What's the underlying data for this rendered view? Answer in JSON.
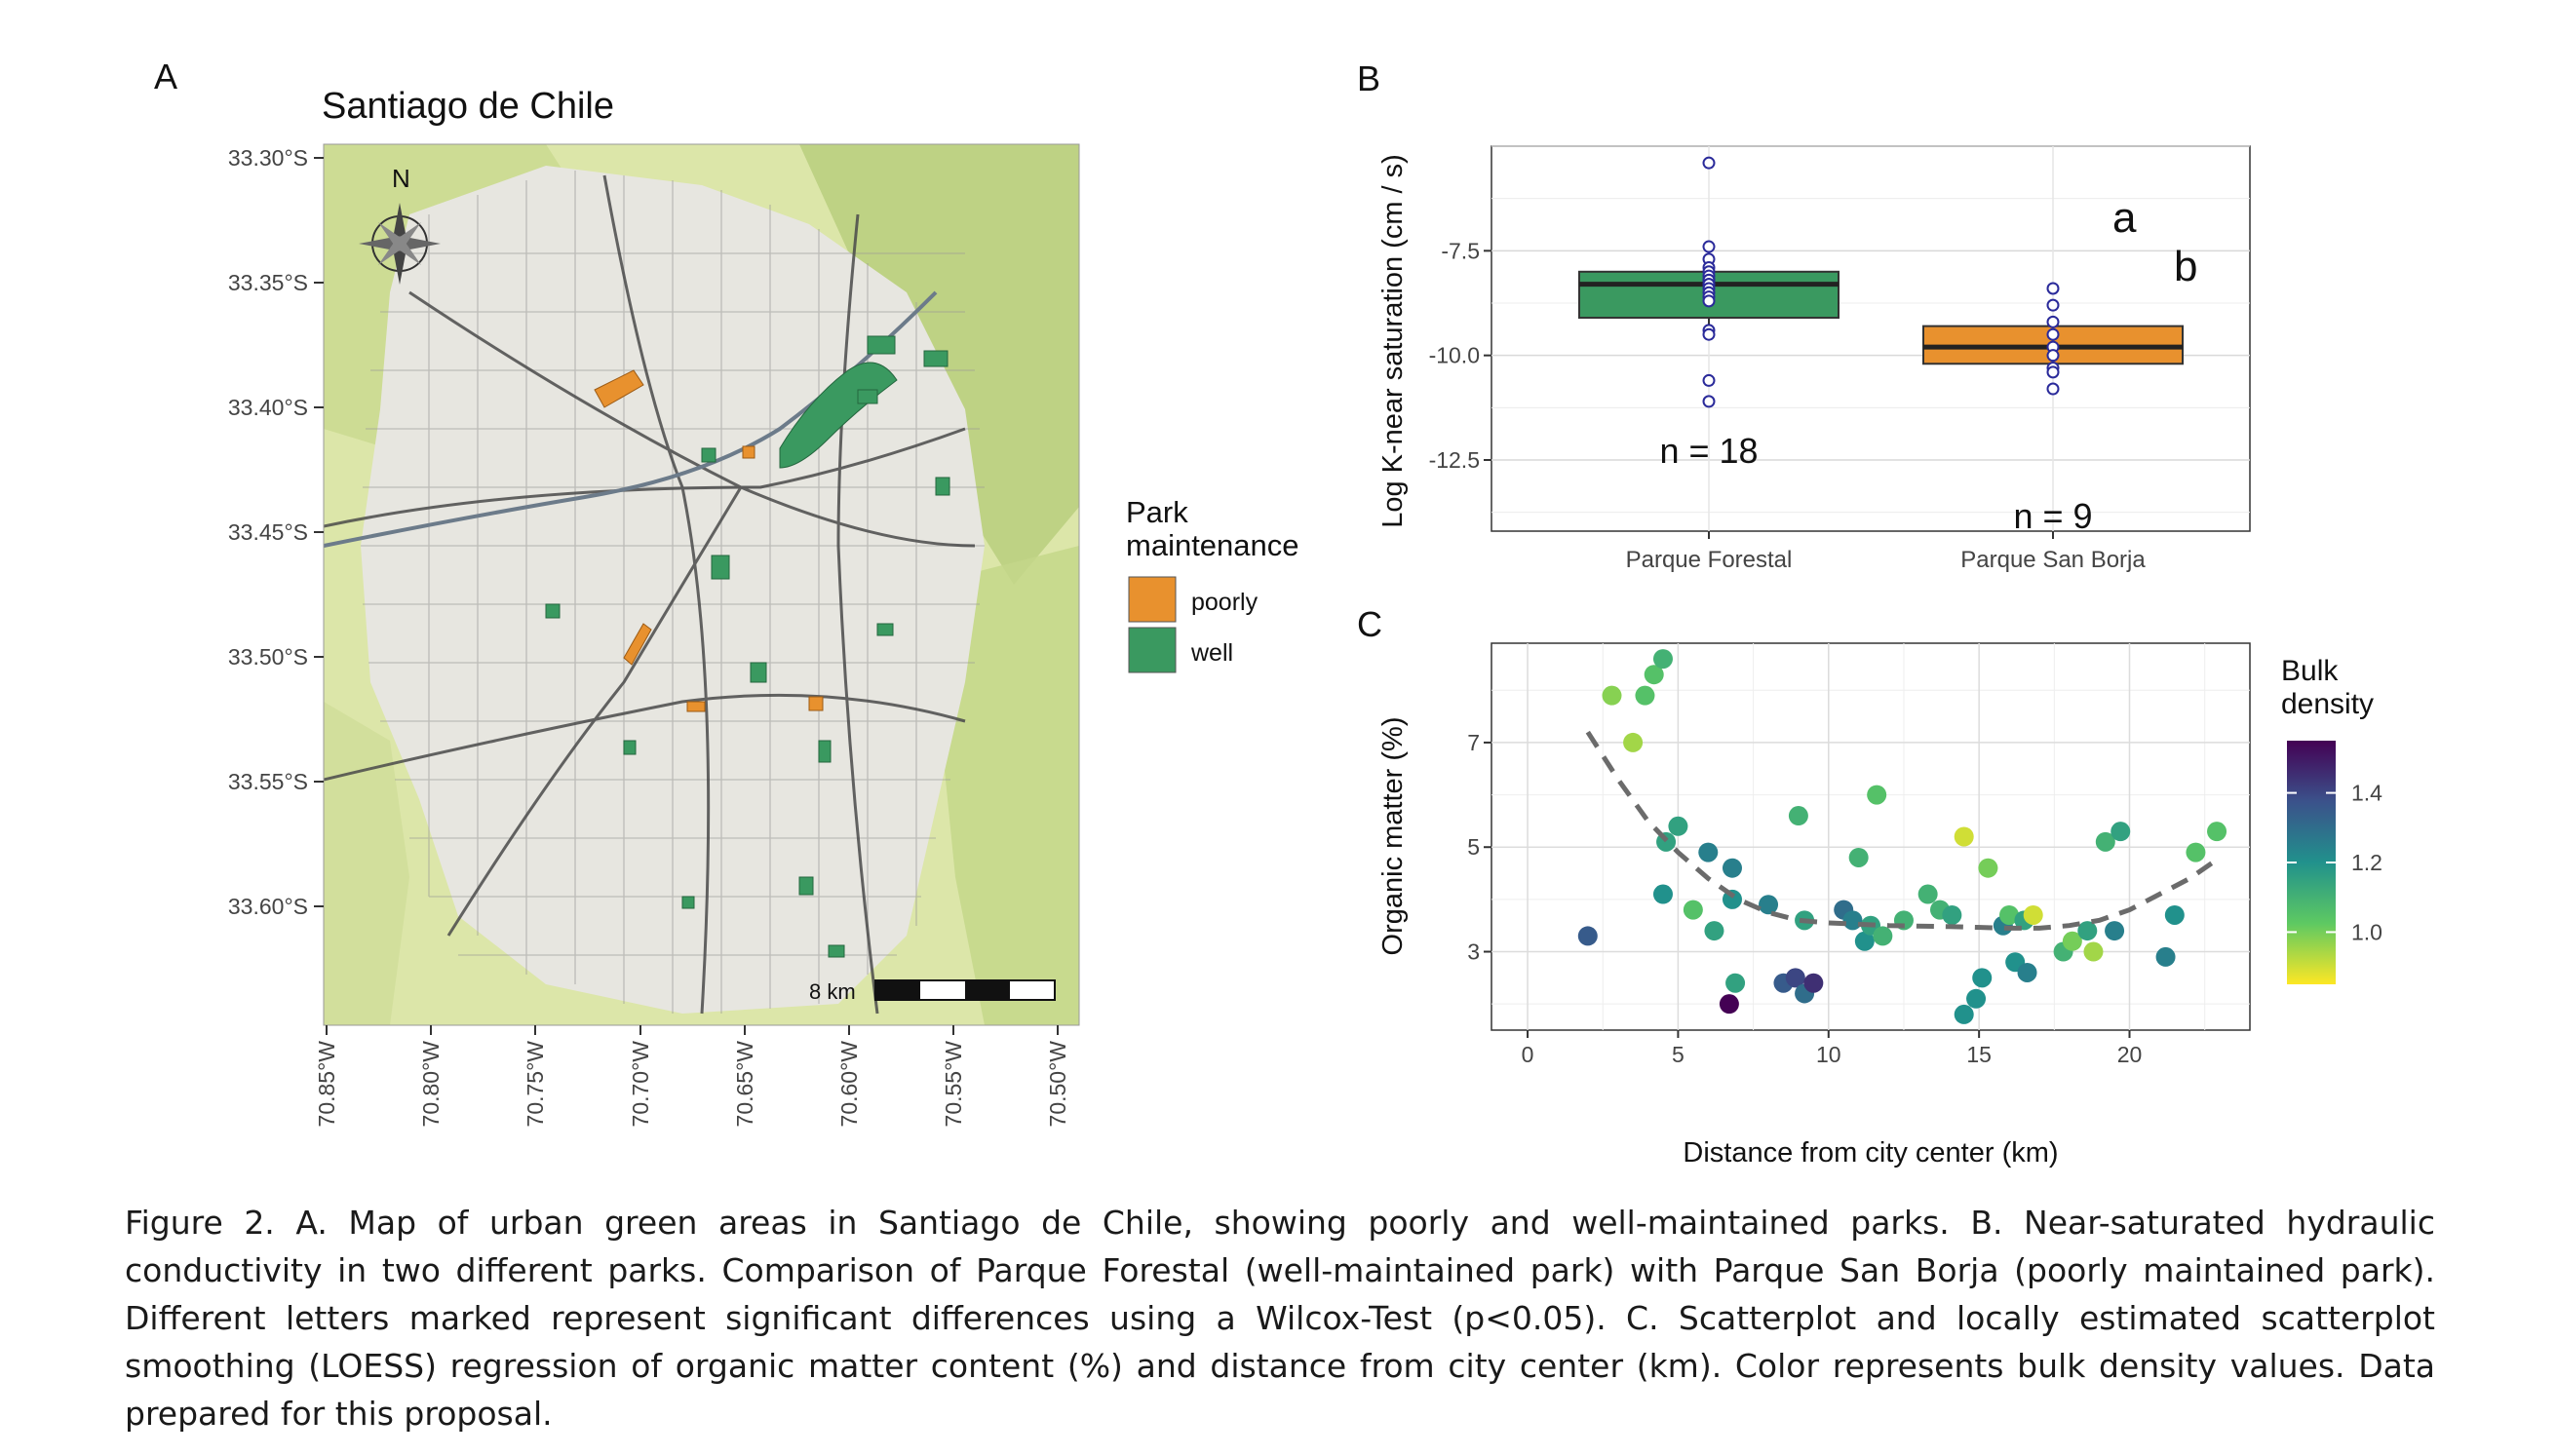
{
  "panel_a": {
    "letter": "A",
    "title": "Santiago de Chile",
    "north_label": "N",
    "scale_label": "8 km",
    "lat_ticks": [
      "33.30°S",
      "33.35°S",
      "33.40°S",
      "33.45°S",
      "33.50°S",
      "33.55°S",
      "33.60°S"
    ],
    "lon_ticks": [
      "70.85°W",
      "70.80°W",
      "70.75°W",
      "70.70°W",
      "70.65°W",
      "70.60°W",
      "70.55°W",
      "70.50°W"
    ],
    "legend": {
      "title_line1": "Park",
      "title_line2": "maintenance",
      "items": [
        {
          "label": "poorly",
          "color": "#E8912E"
        },
        {
          "label": "well",
          "color": "#3A9960"
        }
      ]
    },
    "colors": {
      "poorly": "#E8912E",
      "well": "#3A9960",
      "terrain": "#DDE7A8",
      "urban": "#E6E6E0"
    }
  },
  "panel_b": {
    "letter": "B",
    "ylabel": "Log K-near saturation (cm / s)",
    "yticks": [
      "-7.5",
      "-10.0",
      "-12.5"
    ],
    "categories": [
      "Parque Forestal",
      "Parque San Borja"
    ],
    "letters": [
      "a",
      "b"
    ],
    "n_labels": [
      "n = 18",
      "n = 9"
    ]
  },
  "panel_c": {
    "letter": "C",
    "ylabel": "Organic matter (%)",
    "xlabel": "Distance from city center (km)",
    "xticks": [
      "0",
      "5",
      "10",
      "15",
      "20"
    ],
    "yticks": [
      "7",
      "5",
      "3"
    ],
    "legend_title_line1": "Bulk",
    "legend_title_line2": "density",
    "legend_ticks": [
      "1.4",
      "1.2",
      "1.0"
    ]
  },
  "caption": "Figure 2. A. Map of urban green areas in Santiago de Chile, showing poorly and well-maintained parks. B. Near-saturated hydraulic conductivity in two different parks. Comparison of Parque Forestal (well-maintained park) with Parque San Borja (poorly maintained park). Different letters marked represent significant differences using a Wilcox-Test (p<0.05). C. Scatterplot and locally estimated scatterplot smoothing (LOESS) regression of organic matter content (%) and distance from city center (km). Color represents bulk density values. Data prepared for this proposal.",
  "chart_data": [
    {
      "type": "box",
      "categories": [
        "Parque Forestal",
        "Parque San Borja"
      ],
      "ylim": [
        -14.2,
        -5.0
      ],
      "yticks": [
        -7.5,
        -10.0,
        -12.5
      ],
      "boxes": [
        {
          "category": "Parque Forestal",
          "color": "#3A9960",
          "q1": -9.1,
          "median": -8.3,
          "q3": -8.0,
          "whisker_low": -9.6,
          "whisker_high": -8.0,
          "points": [
            -5.4,
            -7.4,
            -7.7,
            -7.9,
            -8.0,
            -8.1,
            -8.2,
            -8.2,
            -8.3,
            -8.3,
            -8.4,
            -8.5,
            -8.6,
            -8.7,
            -9.4,
            -9.5,
            -10.6,
            -11.1
          ]
        },
        {
          "category": "Parque San Borja",
          "color": "#E8912E",
          "q1": -10.2,
          "median": -9.8,
          "q3": -9.3,
          "whisker_low": -10.2,
          "whisker_high": -9.3,
          "points": [
            -8.4,
            -8.8,
            -9.2,
            -9.5,
            -9.8,
            -10.0,
            -10.3,
            -10.4,
            -10.8
          ]
        }
      ],
      "group_letters": [
        "a",
        "b"
      ],
      "n": [
        18,
        9
      ]
    },
    {
      "type": "scatter",
      "xlabel": "Distance from city center (km)",
      "ylabel": "Organic matter (%)",
      "xlim": [
        -1.2,
        24
      ],
      "ylim": [
        1.5,
        8.9
      ],
      "xticks": [
        0,
        5,
        10,
        15,
        20
      ],
      "yticks": [
        3,
        5,
        7
      ],
      "color_variable": "Bulk density",
      "color_range": [
        0.85,
        1.55
      ],
      "points": [
        {
          "x": 2.0,
          "y": 3.3,
          "c": 1.35
        },
        {
          "x": 2.8,
          "y": 7.9,
          "c": 0.98
        },
        {
          "x": 3.5,
          "y": 7.0,
          "c": 0.95
        },
        {
          "x": 3.9,
          "y": 7.9,
          "c": 1.05
        },
        {
          "x": 4.2,
          "y": 8.3,
          "c": 1.05
        },
        {
          "x": 4.5,
          "y": 8.6,
          "c": 1.1
        },
        {
          "x": 4.6,
          "y": 5.1,
          "c": 1.15
        },
        {
          "x": 5.0,
          "y": 5.4,
          "c": 1.15
        },
        {
          "x": 4.5,
          "y": 4.1,
          "c": 1.2
        },
        {
          "x": 5.5,
          "y": 3.8,
          "c": 1.05
        },
        {
          "x": 6.0,
          "y": 4.9,
          "c": 1.25
        },
        {
          "x": 6.2,
          "y": 3.4,
          "c": 1.15
        },
        {
          "x": 6.8,
          "y": 4.6,
          "c": 1.25
        },
        {
          "x": 6.8,
          "y": 4.0,
          "c": 1.2
        },
        {
          "x": 6.9,
          "y": 2.4,
          "c": 1.15
        },
        {
          "x": 6.7,
          "y": 2.0,
          "c": 1.55
        },
        {
          "x": 8.0,
          "y": 3.9,
          "c": 1.25
        },
        {
          "x": 8.5,
          "y": 2.4,
          "c": 1.35
        },
        {
          "x": 8.9,
          "y": 2.5,
          "c": 1.4
        },
        {
          "x": 9.2,
          "y": 2.2,
          "c": 1.3
        },
        {
          "x": 9.5,
          "y": 2.4,
          "c": 1.45
        },
        {
          "x": 9.0,
          "y": 5.6,
          "c": 1.1
        },
        {
          "x": 9.2,
          "y": 3.6,
          "c": 1.15
        },
        {
          "x": 10.5,
          "y": 3.8,
          "c": 1.3
        },
        {
          "x": 10.8,
          "y": 3.6,
          "c": 1.25
        },
        {
          "x": 11.0,
          "y": 4.8,
          "c": 1.1
        },
        {
          "x": 11.2,
          "y": 3.2,
          "c": 1.2
        },
        {
          "x": 11.4,
          "y": 3.5,
          "c": 1.15
        },
        {
          "x": 11.6,
          "y": 6.0,
          "c": 1.05
        },
        {
          "x": 11.8,
          "y": 3.3,
          "c": 1.1
        },
        {
          "x": 12.5,
          "y": 3.6,
          "c": 1.1
        },
        {
          "x": 13.3,
          "y": 4.1,
          "c": 1.1
        },
        {
          "x": 13.7,
          "y": 3.8,
          "c": 1.1
        },
        {
          "x": 14.1,
          "y": 3.7,
          "c": 1.15
        },
        {
          "x": 14.5,
          "y": 5.2,
          "c": 0.9
        },
        {
          "x": 14.5,
          "y": 1.8,
          "c": 1.2
        },
        {
          "x": 14.9,
          "y": 2.1,
          "c": 1.2
        },
        {
          "x": 15.1,
          "y": 2.5,
          "c": 1.2
        },
        {
          "x": 15.3,
          "y": 4.6,
          "c": 1.0
        },
        {
          "x": 15.8,
          "y": 3.5,
          "c": 1.25
        },
        {
          "x": 16.0,
          "y": 3.7,
          "c": 1.05
        },
        {
          "x": 16.2,
          "y": 2.8,
          "c": 1.2
        },
        {
          "x": 16.5,
          "y": 3.6,
          "c": 1.15
        },
        {
          "x": 16.6,
          "y": 2.6,
          "c": 1.25
        },
        {
          "x": 16.8,
          "y": 3.7,
          "c": 0.9
        },
        {
          "x": 17.8,
          "y": 3.0,
          "c": 1.1
        },
        {
          "x": 18.1,
          "y": 3.2,
          "c": 1.0
        },
        {
          "x": 18.6,
          "y": 3.4,
          "c": 1.15
        },
        {
          "x": 18.8,
          "y": 3.0,
          "c": 0.95
        },
        {
          "x": 19.2,
          "y": 5.1,
          "c": 1.1
        },
        {
          "x": 19.5,
          "y": 3.4,
          "c": 1.25
        },
        {
          "x": 19.7,
          "y": 5.3,
          "c": 1.15
        },
        {
          "x": 21.2,
          "y": 2.9,
          "c": 1.25
        },
        {
          "x": 21.5,
          "y": 3.7,
          "c": 1.2
        },
        {
          "x": 22.2,
          "y": 4.9,
          "c": 1.05
        },
        {
          "x": 22.9,
          "y": 5.3,
          "c": 1.05
        }
      ],
      "loess": [
        {
          "x": 2.0,
          "y": 7.2
        },
        {
          "x": 3.0,
          "y": 6.3
        },
        {
          "x": 4.0,
          "y": 5.5
        },
        {
          "x": 5.0,
          "y": 4.9
        },
        {
          "x": 6.0,
          "y": 4.4
        },
        {
          "x": 7.0,
          "y": 4.0
        },
        {
          "x": 8.0,
          "y": 3.75
        },
        {
          "x": 9.0,
          "y": 3.6
        },
        {
          "x": 10.0,
          "y": 3.55
        },
        {
          "x": 12.0,
          "y": 3.5
        },
        {
          "x": 14.0,
          "y": 3.48
        },
        {
          "x": 16.0,
          "y": 3.45
        },
        {
          "x": 17.0,
          "y": 3.45
        },
        {
          "x": 18.0,
          "y": 3.5
        },
        {
          "x": 19.0,
          "y": 3.6
        },
        {
          "x": 20.0,
          "y": 3.8
        },
        {
          "x": 21.0,
          "y": 4.1
        },
        {
          "x": 22.0,
          "y": 4.4
        },
        {
          "x": 23.0,
          "y": 4.8
        }
      ]
    }
  ]
}
